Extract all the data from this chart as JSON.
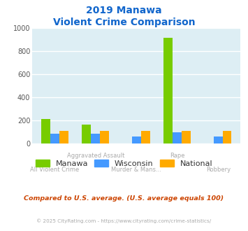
{
  "title_line1": "2019 Manawa",
  "title_line2": "Violent Crime Comparison",
  "manawa": [
    210,
    160,
    0,
    915,
    0
  ],
  "wisconsin": [
    85,
    85,
    60,
    95,
    60
  ],
  "national": [
    105,
    105,
    105,
    107,
    105
  ],
  "bar_colors": {
    "manawa": "#77cc00",
    "wisconsin": "#4499ff",
    "national": "#ffaa00"
  },
  "ylim": [
    0,
    1000
  ],
  "yticks": [
    0,
    200,
    400,
    600,
    800,
    1000
  ],
  "plot_bg": "#ddeef4",
  "grid_color": "#ffffff",
  "title_color": "#1166cc",
  "xlabel_color": "#aaaaaa",
  "top_labels": [
    "",
    "Aggravated Assault",
    "",
    "Rape",
    ""
  ],
  "bot_labels": [
    "All Violent Crime",
    "",
    "Murder & Mans...",
    "",
    "Robbery"
  ],
  "legend_labels": [
    "Manawa",
    "Wisconsin",
    "National"
  ],
  "footnote1": "Compared to U.S. average. (U.S. average equals 100)",
  "footnote2": "© 2025 CityRating.com - https://www.cityrating.com/crime-statistics/",
  "footnote1_color": "#cc4400",
  "footnote2_color": "#aaaaaa"
}
